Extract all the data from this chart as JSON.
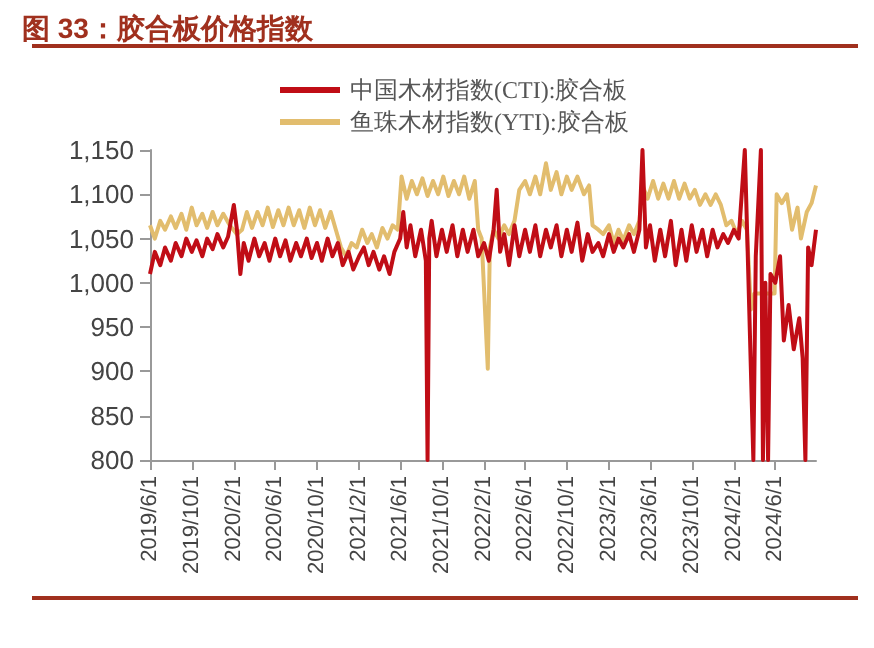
{
  "chart_data": {
    "type": "line",
    "title": "图 33：胶合板价格指数",
    "xlim": [
      "2019-06-01",
      "2024-09-28"
    ],
    "xticks": [
      {
        "value": "2019-06-01",
        "label": "2019/6/1"
      },
      {
        "value": "2019-10-01",
        "label": "2019/10/1"
      },
      {
        "value": "2020-02-01",
        "label": "2020/2/1"
      },
      {
        "value": "2020-06-01",
        "label": "2020/6/1"
      },
      {
        "value": "2020-10-01",
        "label": "2020/10/1"
      },
      {
        "value": "2021-02-01",
        "label": "2021/2/1"
      },
      {
        "value": "2021-06-01",
        "label": "2021/6/1"
      },
      {
        "value": "2021-10-01",
        "label": "2021/10/1"
      },
      {
        "value": "2022-02-01",
        "label": "2022/2/1"
      },
      {
        "value": "2022-06-01",
        "label": "2022/6/1"
      },
      {
        "value": "2022-10-01",
        "label": "2022/10/1"
      },
      {
        "value": "2023-02-01",
        "label": "2023/2/1"
      },
      {
        "value": "2023-06-01",
        "label": "2023/6/1"
      },
      {
        "value": "2023-10-01",
        "label": "2023/10/1"
      },
      {
        "value": "2024-02-01",
        "label": "2024/2/1"
      },
      {
        "value": "2024-06-01",
        "label": "2024/6/1"
      }
    ],
    "ylim": [
      800,
      1150
    ],
    "yticks": [
      800,
      850,
      900,
      950,
      {
        "value": 1000,
        "label": "1,000"
      },
      {
        "value": 1050,
        "label": "1,050"
      },
      {
        "value": 1100,
        "label": "1,100"
      },
      {
        "value": 1150,
        "label": "1,150"
      }
    ],
    "grid": false,
    "legend": "top",
    "marker": "none",
    "line_style": "solid",
    "series": [
      {
        "name": "中国木材指数(CTI):胶合板",
        "color": "#c00d16",
        "x": [
          "2019-06-01",
          "2019-06-15",
          "2019-07-01",
          "2019-07-15",
          "2019-08-01",
          "2019-08-15",
          "2019-09-01",
          "2019-09-15",
          "2019-10-01",
          "2019-10-15",
          "2019-11-01",
          "2019-11-15",
          "2019-12-01",
          "2019-12-15",
          "2020-01-01",
          "2020-01-15",
          "2020-02-01",
          "2020-02-10",
          "2020-02-20",
          "2020-03-01",
          "2020-03-15",
          "2020-04-01",
          "2020-04-15",
          "2020-05-01",
          "2020-05-15",
          "2020-06-01",
          "2020-06-15",
          "2020-07-01",
          "2020-07-15",
          "2020-08-01",
          "2020-08-15",
          "2020-09-01",
          "2020-09-15",
          "2020-10-01",
          "2020-10-15",
          "2020-11-01",
          "2020-11-15",
          "2020-12-01",
          "2020-12-15",
          "2021-01-01",
          "2021-01-15",
          "2021-02-01",
          "2021-02-15",
          "2021-03-01",
          "2021-03-15",
          "2021-04-01",
          "2021-04-15",
          "2021-05-01",
          "2021-05-15",
          "2021-06-01",
          "2021-06-10",
          "2021-06-20",
          "2021-07-01",
          "2021-07-15",
          "2021-08-01",
          "2021-08-15",
          "2021-08-20",
          "2021-08-25",
          "2021-09-01",
          "2021-09-15",
          "2021-10-01",
          "2021-10-15",
          "2021-11-01",
          "2021-11-15",
          "2021-12-01",
          "2021-12-15",
          "2022-01-01",
          "2022-01-15",
          "2022-02-01",
          "2022-02-15",
          "2022-03-01",
          "2022-03-10",
          "2022-03-20",
          "2022-04-01",
          "2022-04-15",
          "2022-05-01",
          "2022-05-15",
          "2022-06-01",
          "2022-06-15",
          "2022-07-01",
          "2022-07-15",
          "2022-08-01",
          "2022-08-15",
          "2022-09-01",
          "2022-09-15",
          "2022-10-01",
          "2022-10-15",
          "2022-11-01",
          "2022-11-15",
          "2022-12-01",
          "2022-12-15",
          "2023-01-01",
          "2023-01-15",
          "2023-02-01",
          "2023-02-15",
          "2023-03-01",
          "2023-03-15",
          "2023-04-01",
          "2023-04-15",
          "2023-05-01",
          "2023-05-10",
          "2023-05-20",
          "2023-06-01",
          "2023-06-15",
          "2023-07-01",
          "2023-07-15",
          "2023-08-01",
          "2023-08-15",
          "2023-09-01",
          "2023-09-15",
          "2023-10-01",
          "2023-10-15",
          "2023-11-01",
          "2023-11-15",
          "2023-12-01",
          "2023-12-15",
          "2024-01-01",
          "2024-01-15",
          "2024-02-01",
          "2024-02-15",
          "2024-03-04",
          "2024-03-12",
          "2024-03-29",
          "2024-04-05",
          "2024-04-20",
          "2024-04-26",
          "2024-05-03",
          "2024-05-11",
          "2024-05-18",
          "2024-06-01",
          "2024-06-15",
          "2024-06-26",
          "2024-07-10",
          "2024-07-25",
          "2024-08-10",
          "2024-08-20",
          "2024-08-28",
          "2024-09-05",
          "2024-09-15",
          "2024-09-28"
        ],
        "values": [
          1010,
          1035,
          1020,
          1040,
          1025,
          1045,
          1030,
          1050,
          1035,
          1048,
          1030,
          1050,
          1038,
          1055,
          1040,
          1052,
          1088,
          1060,
          1010,
          1045,
          1025,
          1050,
          1030,
          1045,
          1025,
          1050,
          1030,
          1048,
          1025,
          1045,
          1030,
          1050,
          1028,
          1045,
          1025,
          1050,
          1030,
          1045,
          1020,
          1035,
          1015,
          1030,
          1040,
          1020,
          1035,
          1015,
          1030,
          1010,
          1035,
          1050,
          1080,
          1040,
          1065,
          1030,
          1060,
          1025,
          800,
          1050,
          1070,
          1030,
          1060,
          1035,
          1065,
          1030,
          1060,
          1035,
          1060,
          1030,
          1045,
          1025,
          1060,
          1105,
          1035,
          1055,
          1020,
          1065,
          1030,
          1060,
          1035,
          1065,
          1030,
          1060,
          1040,
          1065,
          1030,
          1060,
          1035,
          1068,
          1025,
          1055,
          1035,
          1045,
          1030,
          1055,
          1035,
          1050,
          1040,
          1055,
          1035,
          1060,
          1150,
          1040,
          1065,
          1025,
          1060,
          1030,
          1070,
          1020,
          1060,
          1025,
          1065,
          1035,
          1060,
          1030,
          1060,
          1040,
          1055,
          1045,
          1060,
          1050,
          1150,
          1040,
          800,
          1030,
          1150,
          800,
          1000,
          800,
          1010,
          1000,
          1030,
          935,
          975,
          925,
          960,
          915,
          800,
          1040,
          1020,
          1060
        ]
      },
      {
        "name": "鱼珠木材指数(YTI):胶合板",
        "color": "#e2bd6e",
        "x": [
          "2019-06-01",
          "2019-06-15",
          "2019-07-01",
          "2019-07-15",
          "2019-08-01",
          "2019-08-15",
          "2019-09-01",
          "2019-09-15",
          "2019-10-01",
          "2019-10-15",
          "2019-11-01",
          "2019-11-15",
          "2019-12-01",
          "2019-12-15",
          "2020-01-01",
          "2020-01-20",
          "2020-02-10",
          "2020-02-25",
          "2020-03-10",
          "2020-03-25",
          "2020-04-10",
          "2020-04-25",
          "2020-05-10",
          "2020-05-25",
          "2020-06-10",
          "2020-06-25",
          "2020-07-10",
          "2020-07-25",
          "2020-08-10",
          "2020-08-25",
          "2020-09-10",
          "2020-09-25",
          "2020-10-10",
          "2020-10-25",
          "2020-11-10",
          "2020-11-25",
          "2020-12-10",
          "2020-12-25",
          "2021-01-10",
          "2021-01-25",
          "2021-02-10",
          "2021-02-25",
          "2021-03-10",
          "2021-03-25",
          "2021-04-10",
          "2021-04-25",
          "2021-05-10",
          "2021-05-25",
          "2021-06-05",
          "2021-06-20",
          "2021-07-05",
          "2021-07-20",
          "2021-08-05",
          "2021-08-20",
          "2021-09-05",
          "2021-09-20",
          "2021-10-05",
          "2021-10-20",
          "2021-11-05",
          "2021-11-20",
          "2021-12-05",
          "2021-12-20",
          "2022-01-05",
          "2022-01-15",
          "2022-01-25",
          "2022-02-12",
          "2022-02-18",
          "2022-03-01",
          "2022-03-15",
          "2022-04-01",
          "2022-04-15",
          "2022-05-01",
          "2022-05-15",
          "2022-06-01",
          "2022-06-15",
          "2022-07-01",
          "2022-07-15",
          "2022-08-01",
          "2022-08-15",
          "2022-09-01",
          "2022-09-15",
          "2022-10-01",
          "2022-10-15",
          "2022-11-01",
          "2022-11-20",
          "2022-12-05",
          "2022-12-15",
          "2023-01-01",
          "2023-01-15",
          "2023-02-01",
          "2023-02-15",
          "2023-03-01",
          "2023-03-15",
          "2023-04-01",
          "2023-04-15",
          "2023-05-01",
          "2023-05-10",
          "2023-05-25",
          "2023-06-10",
          "2023-06-25",
          "2023-07-10",
          "2023-07-25",
          "2023-08-10",
          "2023-08-25",
          "2023-09-10",
          "2023-09-25",
          "2023-10-10",
          "2023-10-25",
          "2023-11-10",
          "2023-11-25",
          "2023-12-10",
          "2023-12-25",
          "2024-01-10",
          "2024-01-25",
          "2024-02-10",
          "2024-02-25",
          "2024-03-10",
          "2024-03-22",
          "2024-04-01",
          "2024-05-30",
          "2024-06-05",
          "2024-06-20",
          "2024-07-05",
          "2024-07-20",
          "2024-08-05",
          "2024-08-15",
          "2024-09-01",
          "2024-09-15",
          "2024-09-28"
        ],
        "values": [
          1065,
          1050,
          1070,
          1060,
          1075,
          1062,
          1078,
          1060,
          1085,
          1065,
          1078,
          1062,
          1080,
          1065,
          1078,
          1065,
          1055,
          1060,
          1080,
          1062,
          1080,
          1065,
          1085,
          1063,
          1082,
          1065,
          1085,
          1065,
          1082,
          1062,
          1085,
          1065,
          1082,
          1062,
          1080,
          1060,
          1040,
          1030,
          1045,
          1040,
          1060,
          1045,
          1055,
          1040,
          1062,
          1050,
          1065,
          1060,
          1120,
          1095,
          1115,
          1100,
          1118,
          1098,
          1115,
          1100,
          1120,
          1098,
          1115,
          1100,
          1120,
          1095,
          1115,
          1060,
          1050,
          903,
          1040,
          1060,
          1050,
          1065,
          1055,
          1070,
          1105,
          1115,
          1100,
          1120,
          1100,
          1135,
          1105,
          1125,
          1100,
          1120,
          1105,
          1120,
          1100,
          1110,
          1065,
          1060,
          1055,
          1065,
          1045,
          1060,
          1048,
          1065,
          1055,
          1070,
          1110,
          1095,
          1115,
          1095,
          1112,
          1095,
          1115,
          1095,
          1112,
          1095,
          1105,
          1088,
          1100,
          1088,
          1100,
          1088,
          1065,
          1070,
          1055,
          1070,
          1060,
          970,
          988,
          988,
          1100,
          1090,
          1100,
          1060,
          1085,
          1050,
          1080,
          1090,
          1110
        ]
      }
    ]
  }
}
